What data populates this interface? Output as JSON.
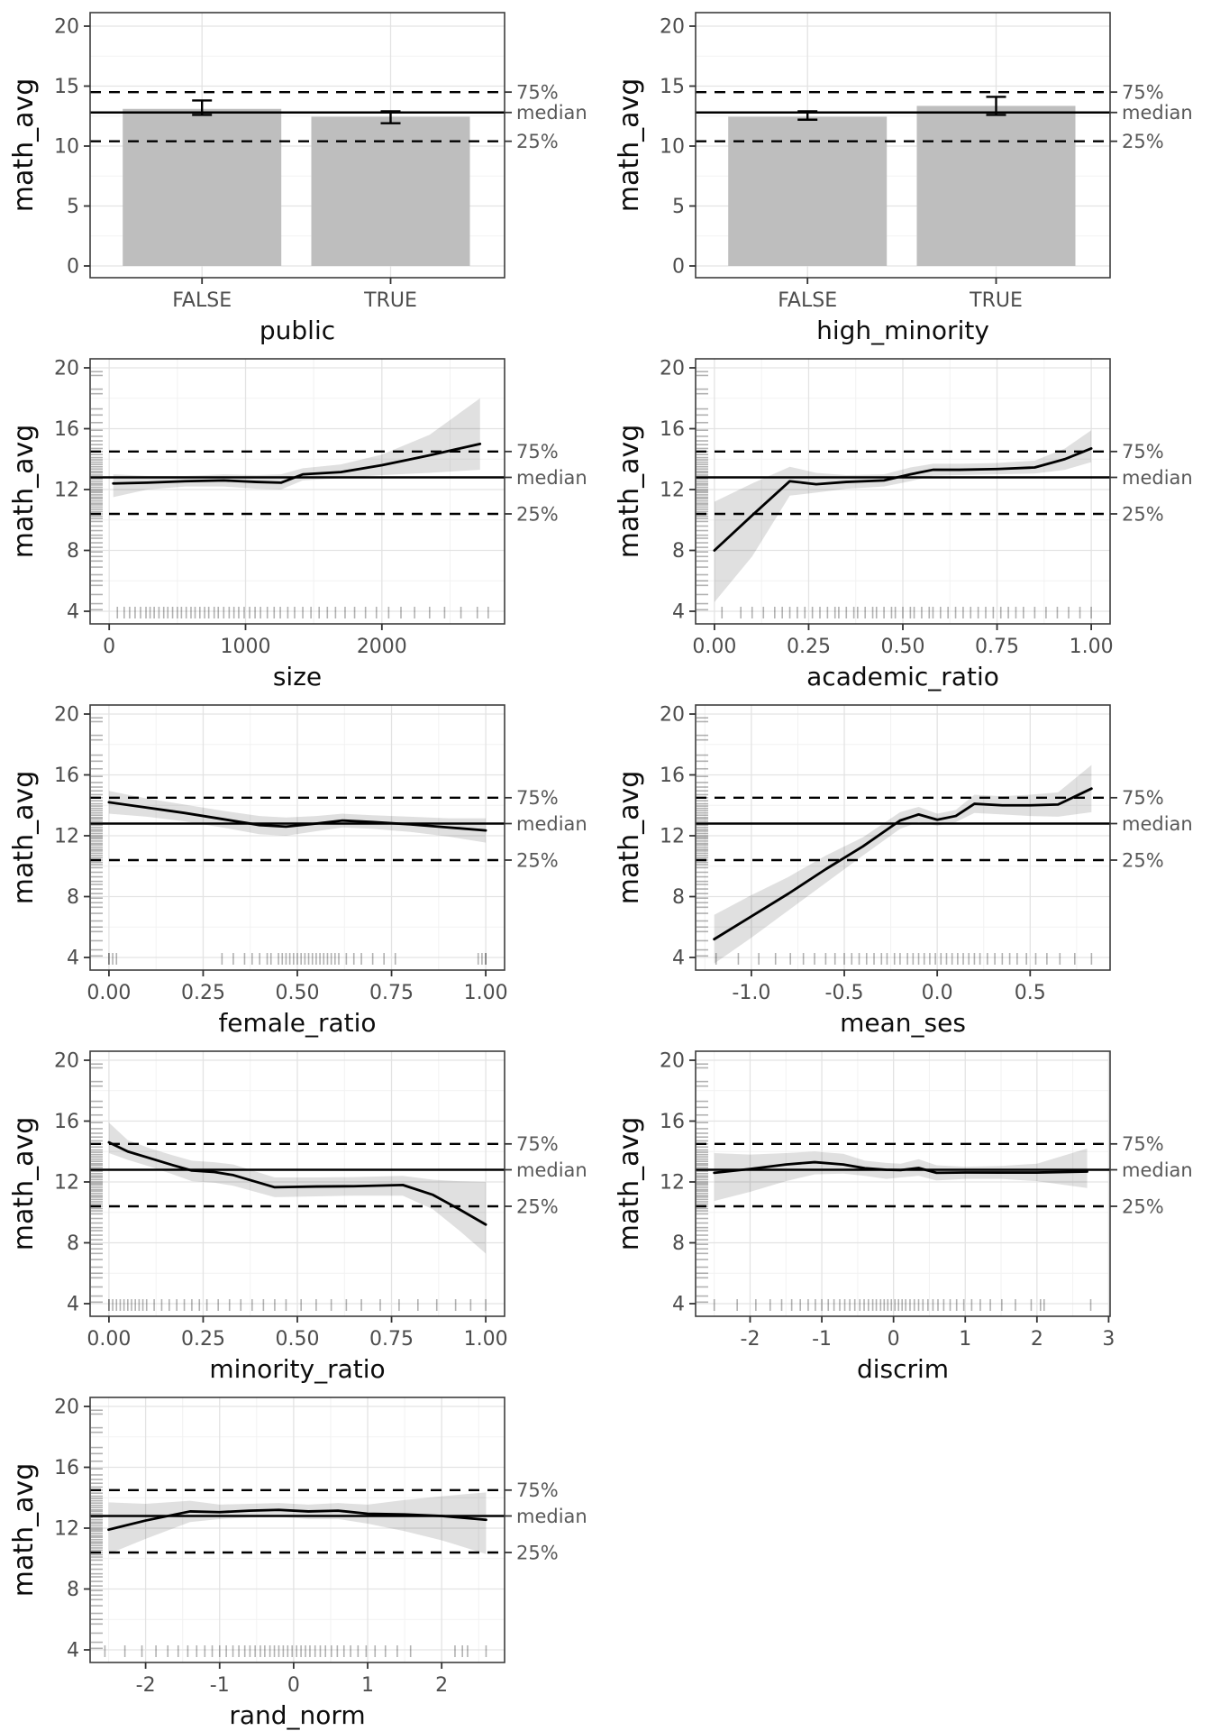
{
  "y_axis_title": "math_avg",
  "quantile_labels": {
    "p75": "75%",
    "median": "median",
    "p25": "25%"
  },
  "reference_values": {
    "p75": 14.5,
    "median": 12.8,
    "p25": 10.4
  },
  "style": {
    "colors": {
      "background": "#ffffff",
      "panel_bg": "#ffffff",
      "panel_border": "#3d3d3d",
      "grid_major": "#e3e3e3",
      "grid_minor": "#f2f2f2",
      "bar_fill": "#bebebe",
      "trend_line": "#000000",
      "ref_line": "#000000",
      "ribbon": "rgba(0,0,0,0.12)",
      "rug": "rgba(0,0,0,0.30)",
      "tick_mark": "#333333",
      "tick_label": "#4d4d4d",
      "axis_title": "#0d0d0d",
      "annotation_label": "#595959"
    }
  },
  "math_avg_rug": [
    4.1,
    4.5,
    5.1,
    5.7,
    6.0,
    6.4,
    6.9,
    7.3,
    7.6,
    7.9,
    8.2,
    8.5,
    8.8,
    9.0,
    9.3,
    9.6,
    9.9,
    10.1,
    10.25,
    10.4,
    10.55,
    10.7,
    10.85,
    11.0,
    11.1,
    11.25,
    11.4,
    11.5,
    11.65,
    11.8,
    11.9,
    12.0,
    12.15,
    12.3,
    12.4,
    12.55,
    12.7,
    12.8,
    12.95,
    13.1,
    13.2,
    13.35,
    13.5,
    13.65,
    13.8,
    13.95,
    14.1,
    14.3,
    14.5,
    14.7,
    14.95,
    15.2,
    15.5,
    15.9,
    16.4,
    16.9,
    17.3,
    18.3,
    18.6,
    19.5,
    19.75
  ],
  "chart_data": [
    {
      "type": "bar",
      "xlabel": "public",
      "ylabel": "math_avg",
      "categories": [
        "FALSE",
        "TRUE"
      ],
      "values": [
        13.1,
        12.45
      ],
      "error_low": [
        12.6,
        11.9
      ],
      "error_high": [
        13.8,
        12.9
      ],
      "ylim": [
        0,
        20
      ],
      "yticks": [
        0,
        5,
        10,
        15,
        20
      ],
      "ytick_labels": [
        "0",
        "5",
        "10",
        "15",
        "20"
      ]
    },
    {
      "type": "bar",
      "xlabel": "high_minority",
      "ylabel": "math_avg",
      "categories": [
        "FALSE",
        "TRUE"
      ],
      "values": [
        12.45,
        13.35
      ],
      "error_low": [
        12.2,
        12.6
      ],
      "error_high": [
        12.9,
        14.1
      ],
      "ylim": [
        0,
        20
      ],
      "yticks": [
        0,
        5,
        10,
        15,
        20
      ],
      "ytick_labels": [
        "0",
        "5",
        "10",
        "15",
        "20"
      ]
    },
    {
      "type": "line",
      "xlabel": "size",
      "ylabel": "math_avg",
      "ylim": [
        4,
        20
      ],
      "yticks": [
        4,
        8,
        12,
        16,
        20
      ],
      "ytick_labels": [
        "4",
        "8",
        "12",
        "16",
        "20"
      ],
      "xdomain": [
        -140,
        2900
      ],
      "xticks": [
        0,
        1000,
        2000
      ],
      "xtick_labels": [
        "0",
        "1000",
        "2000"
      ],
      "x": [
        30,
        280,
        560,
        840,
        1080,
        1260,
        1420,
        1700,
        2000,
        2350,
        2720
      ],
      "y": [
        12.4,
        12.45,
        12.55,
        12.6,
        12.5,
        12.45,
        13.0,
        13.15,
        13.6,
        14.25,
        15.0
      ],
      "lower": [
        11.5,
        12.0,
        12.2,
        12.2,
        12.05,
        12.0,
        12.6,
        12.75,
        12.95,
        13.1,
        13.3
      ],
      "upper": [
        13.0,
        12.9,
        12.9,
        13.0,
        12.95,
        13.0,
        13.4,
        13.65,
        14.3,
        15.6,
        18.0
      ],
      "rug_x": [
        60,
        110,
        150,
        190,
        230,
        270,
        300,
        330,
        365,
        400,
        430,
        465,
        500,
        530,
        565,
        600,
        630,
        665,
        700,
        730,
        770,
        800,
        840,
        880,
        915,
        950,
        990,
        1030,
        1070,
        1110,
        1160,
        1210,
        1255,
        1310,
        1360,
        1420,
        1480,
        1540,
        1600,
        1660,
        1730,
        1800,
        1880,
        1960,
        2050,
        2140,
        2240,
        2350,
        2460,
        2580,
        2700,
        2780
      ]
    },
    {
      "type": "line",
      "xlabel": "academic_ratio",
      "ylabel": "math_avg",
      "ylim": [
        4,
        20
      ],
      "yticks": [
        4,
        8,
        12,
        16,
        20
      ],
      "ytick_labels": [
        "4",
        "8",
        "12",
        "16",
        "20"
      ],
      "xdomain": [
        -0.05,
        1.05
      ],
      "xticks": [
        0,
        0.25,
        0.5,
        0.75,
        1
      ],
      "xtick_labels": [
        "0.00",
        "0.25",
        "0.50",
        "0.75",
        "1.00"
      ],
      "x": [
        0.0,
        0.1,
        0.2,
        0.27,
        0.35,
        0.45,
        0.52,
        0.58,
        0.65,
        0.75,
        0.85,
        0.93,
        1.0
      ],
      "y": [
        8.0,
        10.3,
        12.55,
        12.35,
        12.5,
        12.6,
        13.0,
        13.3,
        13.3,
        13.35,
        13.45,
        14.0,
        14.7
      ],
      "lower": [
        4.6,
        7.6,
        11.6,
        11.8,
        12.05,
        12.2,
        12.55,
        12.9,
        12.95,
        13.0,
        13.05,
        13.3,
        13.8
      ],
      "upper": [
        11.2,
        12.4,
        13.5,
        13.1,
        12.95,
        13.0,
        13.45,
        13.7,
        13.7,
        13.75,
        13.9,
        14.7,
        15.9
      ],
      "rug_x": [
        0.02,
        0.07,
        0.1,
        0.13,
        0.16,
        0.18,
        0.2,
        0.22,
        0.24,
        0.26,
        0.28,
        0.3,
        0.32,
        0.33,
        0.35,
        0.37,
        0.38,
        0.4,
        0.42,
        0.43,
        0.45,
        0.47,
        0.48,
        0.5,
        0.52,
        0.53,
        0.55,
        0.57,
        0.58,
        0.6,
        0.62,
        0.64,
        0.66,
        0.68,
        0.7,
        0.72,
        0.74,
        0.76,
        0.78,
        0.8,
        0.82,
        0.85,
        0.88,
        0.91,
        0.94,
        0.97,
        1.0
      ]
    },
    {
      "type": "line",
      "xlabel": "female_ratio",
      "ylabel": "math_avg",
      "ylim": [
        4,
        20
      ],
      "yticks": [
        4,
        8,
        12,
        16,
        20
      ],
      "ytick_labels": [
        "4",
        "8",
        "12",
        "16",
        "20"
      ],
      "xdomain": [
        -0.05,
        1.05
      ],
      "xticks": [
        0,
        0.25,
        0.5,
        0.75,
        1
      ],
      "xtick_labels": [
        "0.00",
        "0.25",
        "0.50",
        "0.75",
        "1.00"
      ],
      "x": [
        0.0,
        0.1,
        0.2,
        0.3,
        0.4,
        0.47,
        0.55,
        0.62,
        0.7,
        0.8,
        0.9,
        1.0
      ],
      "y": [
        14.2,
        13.85,
        13.5,
        13.1,
        12.7,
        12.6,
        12.8,
        13.0,
        12.9,
        12.75,
        12.55,
        12.35
      ],
      "lower": [
        13.45,
        13.25,
        12.95,
        12.55,
        12.1,
        12.0,
        12.3,
        12.55,
        12.45,
        12.25,
        11.95,
        11.55
      ],
      "upper": [
        14.95,
        14.45,
        14.05,
        13.65,
        13.3,
        13.2,
        13.3,
        13.45,
        13.35,
        13.25,
        13.15,
        13.15
      ],
      "rug_x": [
        0.0,
        0.0,
        0.01,
        0.02,
        0.3,
        0.33,
        0.36,
        0.38,
        0.4,
        0.42,
        0.43,
        0.45,
        0.46,
        0.47,
        0.48,
        0.49,
        0.5,
        0.51,
        0.52,
        0.53,
        0.54,
        0.55,
        0.56,
        0.57,
        0.58,
        0.59,
        0.6,
        0.61,
        0.63,
        0.65,
        0.67,
        0.7,
        0.73,
        0.76,
        0.98,
        0.99,
        1.0,
        1.0
      ]
    },
    {
      "type": "line",
      "xlabel": "mean_ses",
      "ylabel": "math_avg",
      "ylim": [
        4,
        20
      ],
      "yticks": [
        4,
        8,
        12,
        16,
        20
      ],
      "ytick_labels": [
        "4",
        "8",
        "12",
        "16",
        "20"
      ],
      "xdomain": [
        -1.3,
        0.93
      ],
      "xticks": [
        -1,
        -0.5,
        0,
        0.5
      ],
      "xtick_labels": [
        "-1.0",
        "-0.5",
        "0.0",
        "0.5"
      ],
      "x": [
        -1.2,
        -1.0,
        -0.8,
        -0.6,
        -0.4,
        -0.2,
        -0.1,
        0.0,
        0.1,
        0.2,
        0.35,
        0.5,
        0.65,
        0.83
      ],
      "y": [
        5.2,
        6.7,
        8.2,
        9.8,
        11.3,
        13.0,
        13.4,
        13.05,
        13.3,
        14.1,
        14.0,
        14.0,
        14.05,
        15.1
      ],
      "lower": [
        3.6,
        5.3,
        7.1,
        8.9,
        10.7,
        12.45,
        12.9,
        12.65,
        12.9,
        13.5,
        13.4,
        13.3,
        13.25,
        13.55
      ],
      "upper": [
        6.8,
        8.1,
        9.3,
        10.7,
        11.9,
        13.55,
        13.9,
        13.45,
        13.7,
        14.7,
        14.6,
        14.7,
        14.85,
        16.65
      ],
      "rug_x": [
        -1.19,
        -1.07,
        -0.96,
        -0.87,
        -0.79,
        -0.72,
        -0.66,
        -0.6,
        -0.55,
        -0.5,
        -0.46,
        -0.42,
        -0.38,
        -0.34,
        -0.3,
        -0.27,
        -0.23,
        -0.2,
        -0.16,
        -0.13,
        -0.1,
        -0.07,
        -0.04,
        -0.01,
        0.02,
        0.05,
        0.08,
        0.11,
        0.14,
        0.17,
        0.2,
        0.23,
        0.27,
        0.31,
        0.35,
        0.39,
        0.43,
        0.48,
        0.53,
        0.59,
        0.66,
        0.74,
        0.83
      ]
    },
    {
      "type": "line",
      "xlabel": "minority_ratio",
      "ylabel": "math_avg",
      "ylim": [
        4,
        20
      ],
      "yticks": [
        4,
        8,
        12,
        16,
        20
      ],
      "ytick_labels": [
        "4",
        "8",
        "12",
        "16",
        "20"
      ],
      "xdomain": [
        -0.05,
        1.05
      ],
      "xticks": [
        0,
        0.25,
        0.5,
        0.75,
        1
      ],
      "xtick_labels": [
        "0.00",
        "0.25",
        "0.50",
        "0.75",
        "1.00"
      ],
      "x": [
        0.0,
        0.05,
        0.11,
        0.17,
        0.22,
        0.28,
        0.33,
        0.44,
        0.55,
        0.65,
        0.78,
        0.86,
        0.93,
        1.0
      ],
      "y": [
        14.6,
        14.0,
        13.55,
        13.1,
        12.75,
        12.65,
        12.45,
        11.65,
        11.7,
        11.72,
        11.8,
        11.15,
        10.2,
        9.2
      ],
      "lower": [
        13.9,
        13.45,
        13.0,
        12.5,
        12.05,
        11.95,
        11.75,
        11.0,
        11.05,
        11.1,
        11.1,
        10.2,
        8.8,
        7.3
      ],
      "upper": [
        15.9,
        14.75,
        14.2,
        13.75,
        13.4,
        13.3,
        13.15,
        12.3,
        12.3,
        12.32,
        12.4,
        12.15,
        12.05,
        12.0
      ],
      "rug_x": [
        0.0,
        0.0,
        0.01,
        0.02,
        0.03,
        0.04,
        0.05,
        0.06,
        0.07,
        0.08,
        0.09,
        0.1,
        0.12,
        0.14,
        0.16,
        0.18,
        0.2,
        0.22,
        0.24,
        0.26,
        0.29,
        0.32,
        0.35,
        0.38,
        0.41,
        0.44,
        0.47,
        0.51,
        0.55,
        0.59,
        0.63,
        0.67,
        0.72,
        0.77,
        0.82,
        0.87,
        0.92,
        0.96,
        1.0
      ]
    },
    {
      "type": "line",
      "xlabel": "discrim",
      "ylabel": "math_avg",
      "ylim": [
        4,
        20
      ],
      "yticks": [
        4,
        8,
        12,
        16,
        20
      ],
      "ytick_labels": [
        "4",
        "8",
        "12",
        "16",
        "20"
      ],
      "xdomain": [
        -2.76,
        3.02
      ],
      "xticks": [
        -2,
        -1,
        0,
        1,
        2,
        3
      ],
      "xtick_labels": [
        "-2",
        "-1",
        "0",
        "1",
        "2",
        "3"
      ],
      "x": [
        -2.5,
        -2.0,
        -1.5,
        -1.1,
        -0.7,
        -0.4,
        -0.1,
        0.1,
        0.35,
        0.6,
        1.0,
        1.5,
        2.0,
        2.7
      ],
      "y": [
        12.6,
        12.85,
        13.15,
        13.3,
        13.15,
        12.9,
        12.8,
        12.78,
        12.92,
        12.6,
        12.62,
        12.62,
        12.62,
        12.68
      ],
      "lower": [
        10.75,
        11.35,
        12.05,
        12.5,
        12.55,
        12.4,
        12.2,
        12.3,
        12.4,
        12.1,
        12.2,
        12.2,
        12.05,
        11.6
      ],
      "upper": [
        13.9,
        13.8,
        13.9,
        14.0,
        13.85,
        13.4,
        13.25,
        13.2,
        13.5,
        13.1,
        13.0,
        13.05,
        13.2,
        14.2
      ],
      "rug_x": [
        -2.5,
        -2.18,
        -1.92,
        -1.72,
        -1.56,
        -1.42,
        -1.3,
        -1.19,
        -1.09,
        -1.0,
        -0.91,
        -0.83,
        -0.75,
        -0.68,
        -0.61,
        -0.54,
        -0.47,
        -0.41,
        -0.35,
        -0.29,
        -0.24,
        -0.18,
        -0.13,
        -0.08,
        -0.03,
        0.02,
        0.07,
        0.12,
        0.17,
        0.23,
        0.29,
        0.35,
        0.41,
        0.48,
        0.55,
        0.62,
        0.7,
        0.79,
        0.88,
        0.98,
        1.09,
        1.21,
        1.35,
        1.51,
        1.7,
        1.92,
        2.05,
        2.1,
        2.75
      ]
    },
    {
      "type": "line",
      "xlabel": "rand_norm",
      "ylabel": "math_avg",
      "ylim": [
        4,
        20
      ],
      "yticks": [
        4,
        8,
        12,
        16,
        20
      ],
      "ytick_labels": [
        "4",
        "8",
        "12",
        "16",
        "20"
      ],
      "xdomain": [
        -2.75,
        2.85
      ],
      "xticks": [
        -2,
        -1,
        0,
        1,
        2
      ],
      "xtick_labels": [
        "-2",
        "-1",
        "0",
        "1",
        "2"
      ],
      "x": [
        -2.5,
        -2.0,
        -1.4,
        -1.0,
        -0.6,
        -0.2,
        0.2,
        0.6,
        1.0,
        1.5,
        2.0,
        2.6
      ],
      "y": [
        11.9,
        12.5,
        13.1,
        13.05,
        13.15,
        13.2,
        13.1,
        13.15,
        12.95,
        12.9,
        12.8,
        12.55
      ],
      "lower": [
        10.3,
        11.3,
        12.4,
        12.6,
        12.7,
        12.75,
        12.6,
        12.6,
        12.3,
        11.8,
        11.2,
        10.3
      ],
      "upper": [
        13.7,
        13.6,
        13.8,
        13.55,
        13.6,
        13.65,
        13.55,
        13.65,
        13.55,
        13.85,
        14.1,
        14.35
      ],
      "rug_x": [
        -2.55,
        -2.28,
        -2.05,
        -1.86,
        -1.7,
        -1.56,
        -1.43,
        -1.31,
        -1.2,
        -1.1,
        -1.0,
        -0.91,
        -0.82,
        -0.74,
        -0.66,
        -0.59,
        -0.52,
        -0.45,
        -0.39,
        -0.32,
        -0.26,
        -0.2,
        -0.14,
        -0.08,
        -0.02,
        0.04,
        0.1,
        0.16,
        0.22,
        0.29,
        0.36,
        0.43,
        0.51,
        0.59,
        0.68,
        0.77,
        0.87,
        0.98,
        1.1,
        1.24,
        1.4,
        1.58,
        2.18,
        2.28,
        2.35,
        2.6
      ]
    }
  ]
}
